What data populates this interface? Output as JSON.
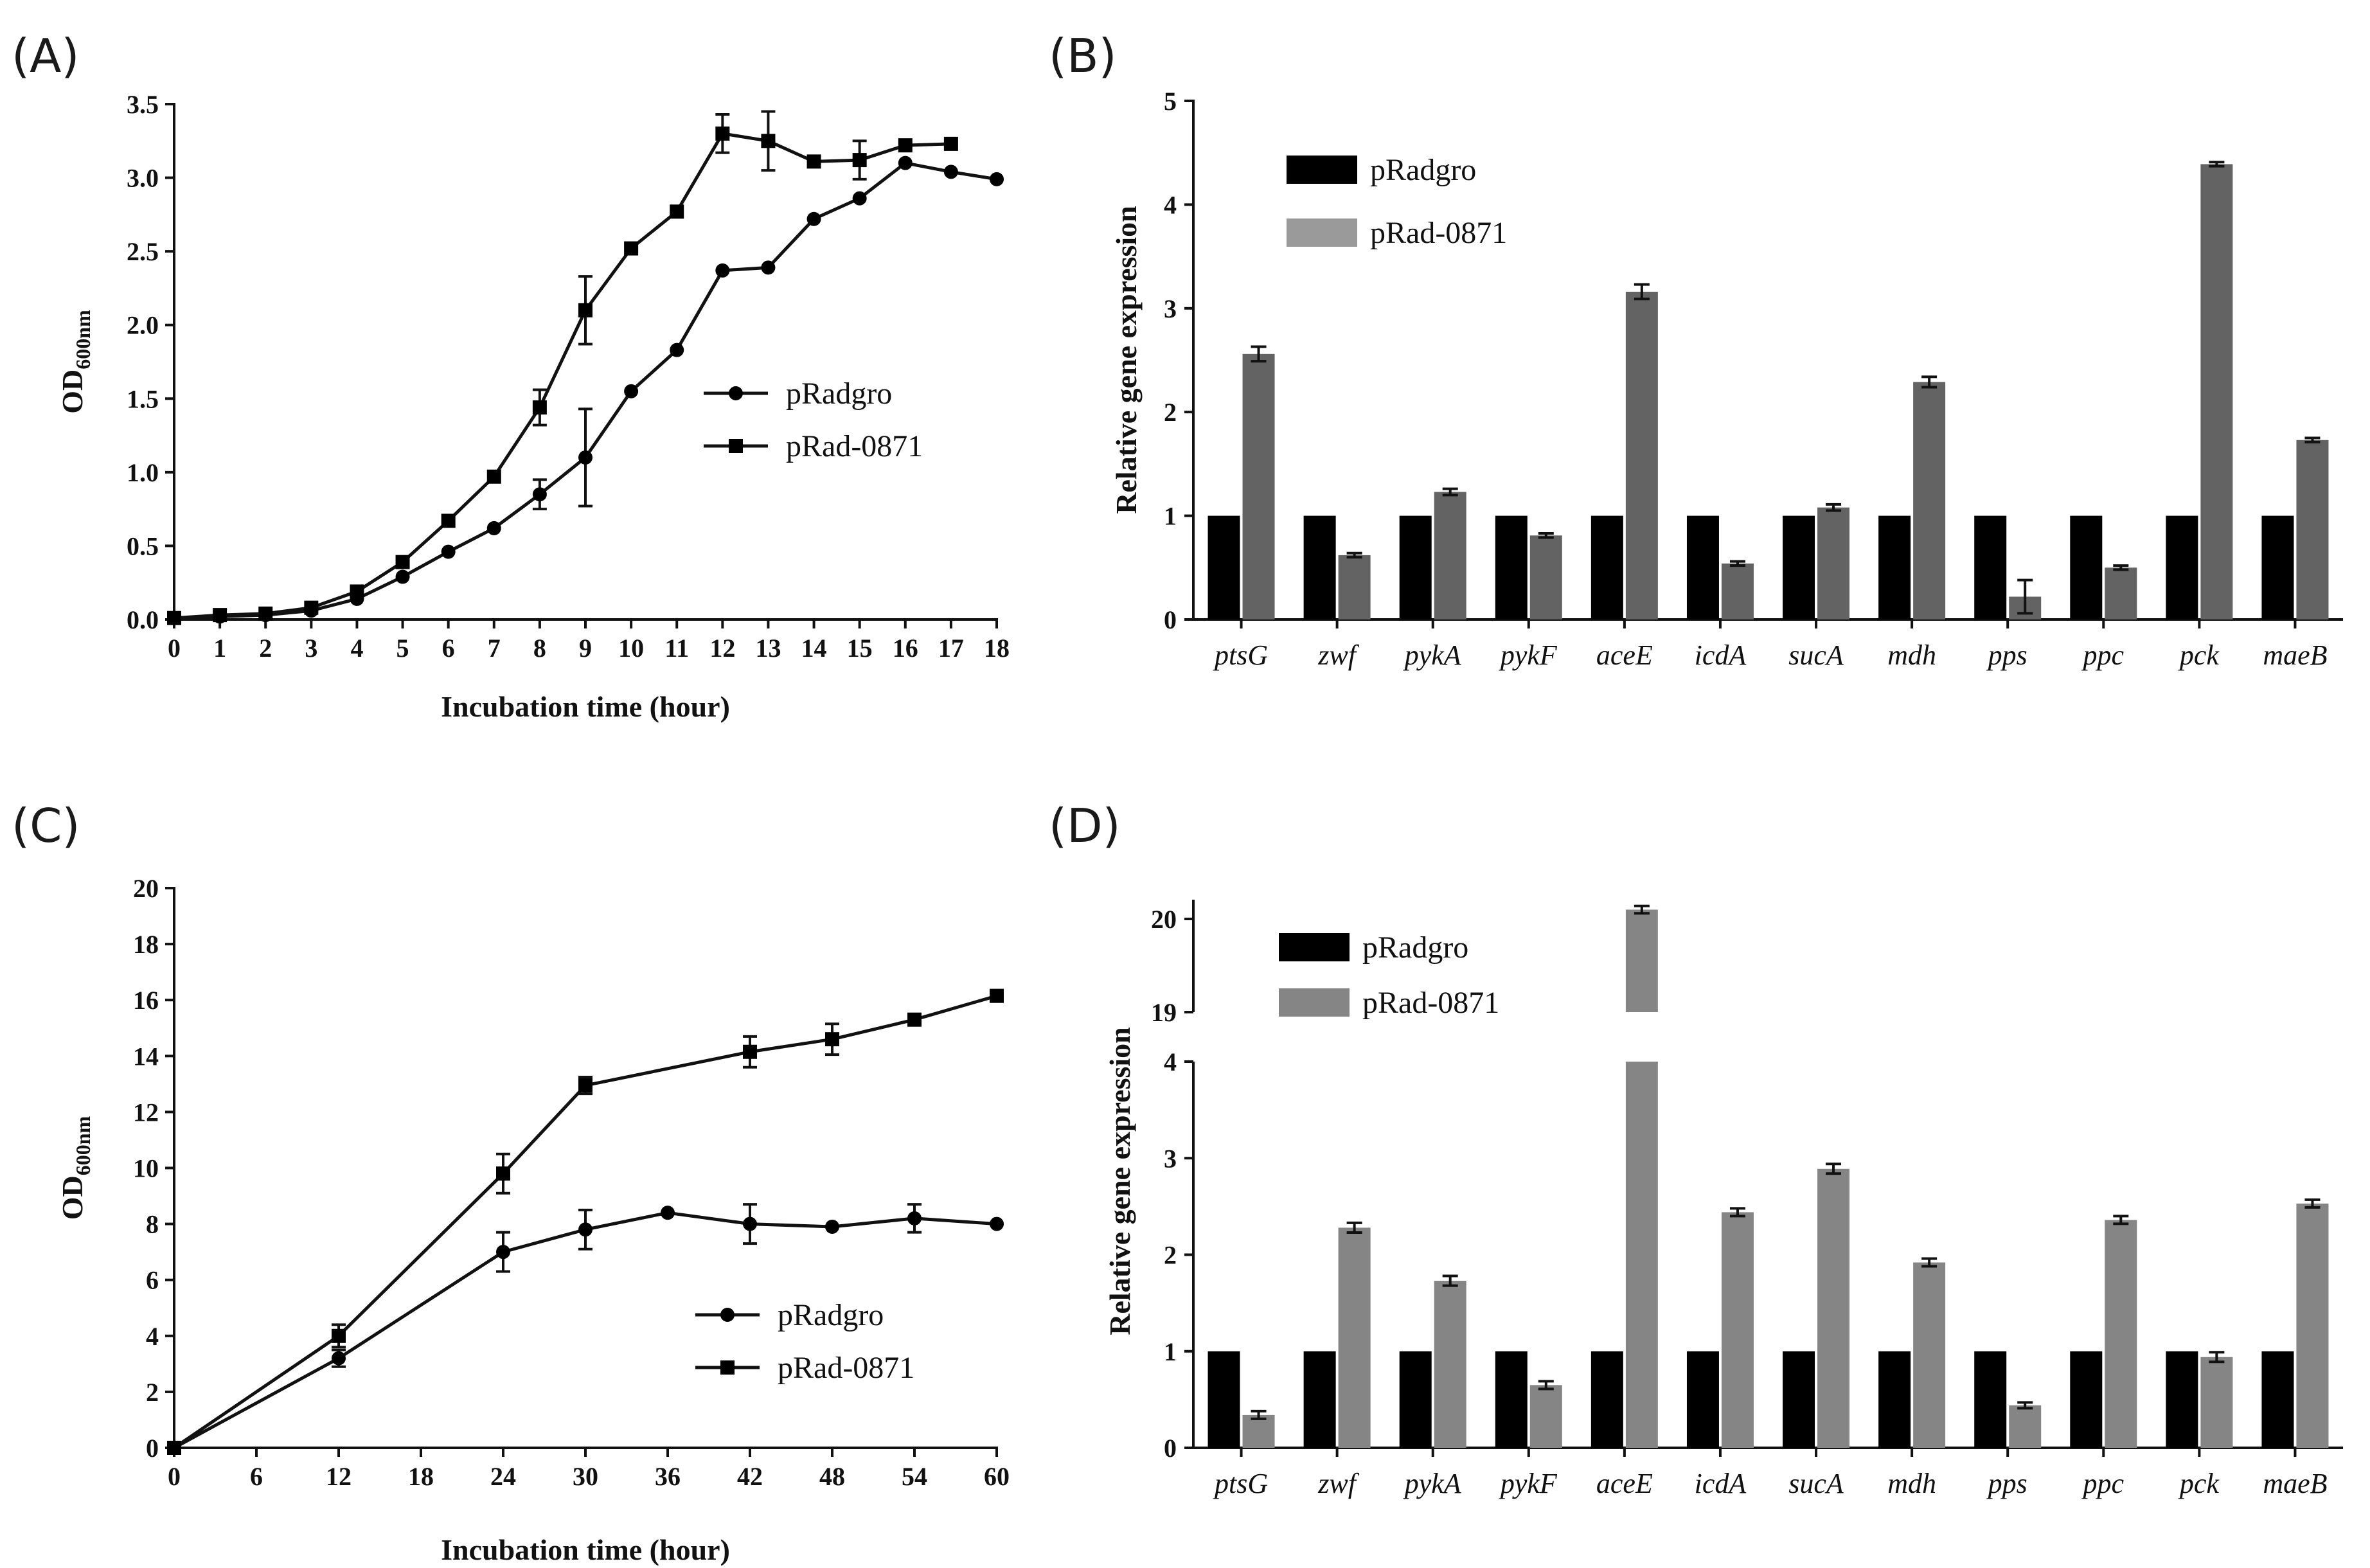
{
  "chart_data": [
    {
      "id": "A",
      "panel_label": "(A)",
      "type": "line",
      "xlabel": "Incubation time (hour)",
      "ylabel": "OD",
      "ylabel_sub": "600nm",
      "xlim": [
        0,
        18
      ],
      "ylim": [
        0,
        3.5
      ],
      "xticks": [
        "0",
        "1",
        "2",
        "3",
        "4",
        "5",
        "6",
        "7",
        "8",
        "9",
        "10",
        "11",
        "12",
        "13",
        "14",
        "15",
        "16",
        "17",
        "18"
      ],
      "yticks": [
        "0.0",
        "0.5",
        "1.0",
        "1.5",
        "2.0",
        "2.5",
        "3.0",
        "3.5"
      ],
      "legend_position": "middle-right",
      "series": [
        {
          "name": "pRadgro",
          "marker": "circle",
          "x": [
            0,
            1,
            2,
            3,
            4,
            5,
            6,
            7,
            8,
            9,
            10,
            11,
            12,
            13,
            14,
            15,
            16,
            17,
            18
          ],
          "y": [
            0.01,
            0.02,
            0.03,
            0.06,
            0.14,
            0.29,
            0.46,
            0.62,
            0.85,
            1.1,
            1.55,
            1.83,
            2.37,
            2.39,
            2.72,
            2.86,
            3.1,
            3.04,
            2.99
          ],
          "err": [
            0,
            0,
            0,
            0,
            0,
            0,
            0,
            0,
            0.1,
            0.33,
            0,
            0,
            0,
            0,
            0,
            0,
            0,
            0,
            0
          ]
        },
        {
          "name": "pRad-0871",
          "marker": "square",
          "x": [
            0,
            1,
            2,
            3,
            4,
            5,
            6,
            7,
            8,
            9,
            10,
            11,
            12,
            13,
            14,
            15,
            16,
            17
          ],
          "y": [
            0.01,
            0.03,
            0.04,
            0.08,
            0.19,
            0.39,
            0.67,
            0.97,
            1.44,
            2.1,
            2.52,
            2.77,
            3.3,
            3.25,
            3.11,
            3.12,
            3.22,
            3.23
          ],
          "err": [
            0,
            0,
            0,
            0,
            0,
            0,
            0,
            0,
            0.12,
            0.23,
            0,
            0,
            0.13,
            0.2,
            0,
            0.13,
            0,
            0
          ]
        }
      ]
    },
    {
      "id": "B",
      "panel_label": "(B)",
      "type": "bar",
      "ylabel": "Relative gene expression",
      "ylim": [
        0,
        5
      ],
      "yticks": [
        "0",
        "1",
        "2",
        "3",
        "4",
        "5"
      ],
      "categories": [
        "ptsG",
        "zwf",
        "pykA",
        "pykF",
        "aceE",
        "icdA",
        "sucA",
        "mdh",
        "pps",
        "ppc",
        "pck",
        "maeB"
      ],
      "legend_position": "top-left",
      "series": [
        {
          "name": "pRadgro",
          "color": "#000000",
          "values": [
            1,
            1,
            1,
            1,
            1,
            1,
            1,
            1,
            1,
            1,
            1,
            1
          ]
        },
        {
          "name": "pRad-0871",
          "color": "#636363",
          "legend_color": "#9a9a9a",
          "values": [
            2.56,
            0.62,
            1.23,
            0.81,
            3.16,
            0.54,
            1.08,
            2.29,
            0.22,
            0.5,
            4.39,
            1.73
          ],
          "err": [
            0.07,
            0.02,
            0.03,
            0.02,
            0.07,
            0.02,
            0.03,
            0.05,
            0.16,
            0.02,
            0.02,
            0.02
          ]
        }
      ]
    },
    {
      "id": "C",
      "panel_label": "(C)",
      "type": "line",
      "xlabel": "Incubation time (hour)",
      "ylabel": "OD",
      "ylabel_sub": "600nm",
      "xlim": [
        0,
        60
      ],
      "ylim": [
        0,
        20
      ],
      "xticks": [
        "0",
        "6",
        "12",
        "18",
        "24",
        "30",
        "36",
        "42",
        "48",
        "54",
        "60"
      ],
      "yticks": [
        "0",
        "2",
        "4",
        "6",
        "8",
        "10",
        "12",
        "14",
        "16",
        "18",
        "20"
      ],
      "legend_position": "bottom-right",
      "series": [
        {
          "name": "pRadgro",
          "marker": "circle",
          "x": [
            0,
            12,
            24,
            30,
            36,
            42,
            48,
            54,
            60
          ],
          "y": [
            0,
            3.2,
            7.0,
            7.8,
            8.4,
            8.0,
            7.9,
            8.2,
            8.0
          ],
          "err": [
            0,
            0.3,
            0.7,
            0.7,
            0,
            0.7,
            0,
            0.5,
            0
          ]
        },
        {
          "name": "pRad-0871",
          "marker": "square",
          "x": [
            0,
            12,
            24,
            30,
            42,
            48,
            54,
            60
          ],
          "y": [
            0,
            4.0,
            9.8,
            12.95,
            14.15,
            14.6,
            15.3,
            16.15
          ],
          "err": [
            0,
            0.4,
            0.7,
            0.3,
            0.55,
            0.55,
            0,
            0
          ]
        }
      ]
    },
    {
      "id": "D",
      "panel_label": "(D)",
      "type": "bar",
      "ylabel": "Relative gene expression",
      "y_axis_break": {
        "lower": [
          0,
          4
        ],
        "upper": [
          19,
          20
        ]
      },
      "yticks_lower": [
        "0",
        "1",
        "2",
        "3",
        "4"
      ],
      "yticks_upper": [
        "19",
        "20"
      ],
      "categories": [
        "ptsG",
        "zwf",
        "pykA",
        "pykF",
        "aceE",
        "icdA",
        "sucA",
        "mdh",
        "pps",
        "ppc",
        "pck",
        "maeB"
      ],
      "legend_position": "top-left",
      "series": [
        {
          "name": "pRadgro",
          "color": "#000000",
          "values": [
            1,
            1,
            1,
            1,
            1,
            1,
            1,
            1,
            1,
            1,
            1,
            1
          ]
        },
        {
          "name": "pRad-0871",
          "color": "#858585",
          "values": [
            0.34,
            2.28,
            1.73,
            0.65,
            20.1,
            2.44,
            2.89,
            1.92,
            0.44,
            2.36,
            0.94,
            2.53
          ],
          "err": [
            0.04,
            0.05,
            0.05,
            0.04,
            0.04,
            0.04,
            0.05,
            0.04,
            0.03,
            0.04,
            0.05,
            0.04
          ]
        }
      ]
    }
  ]
}
